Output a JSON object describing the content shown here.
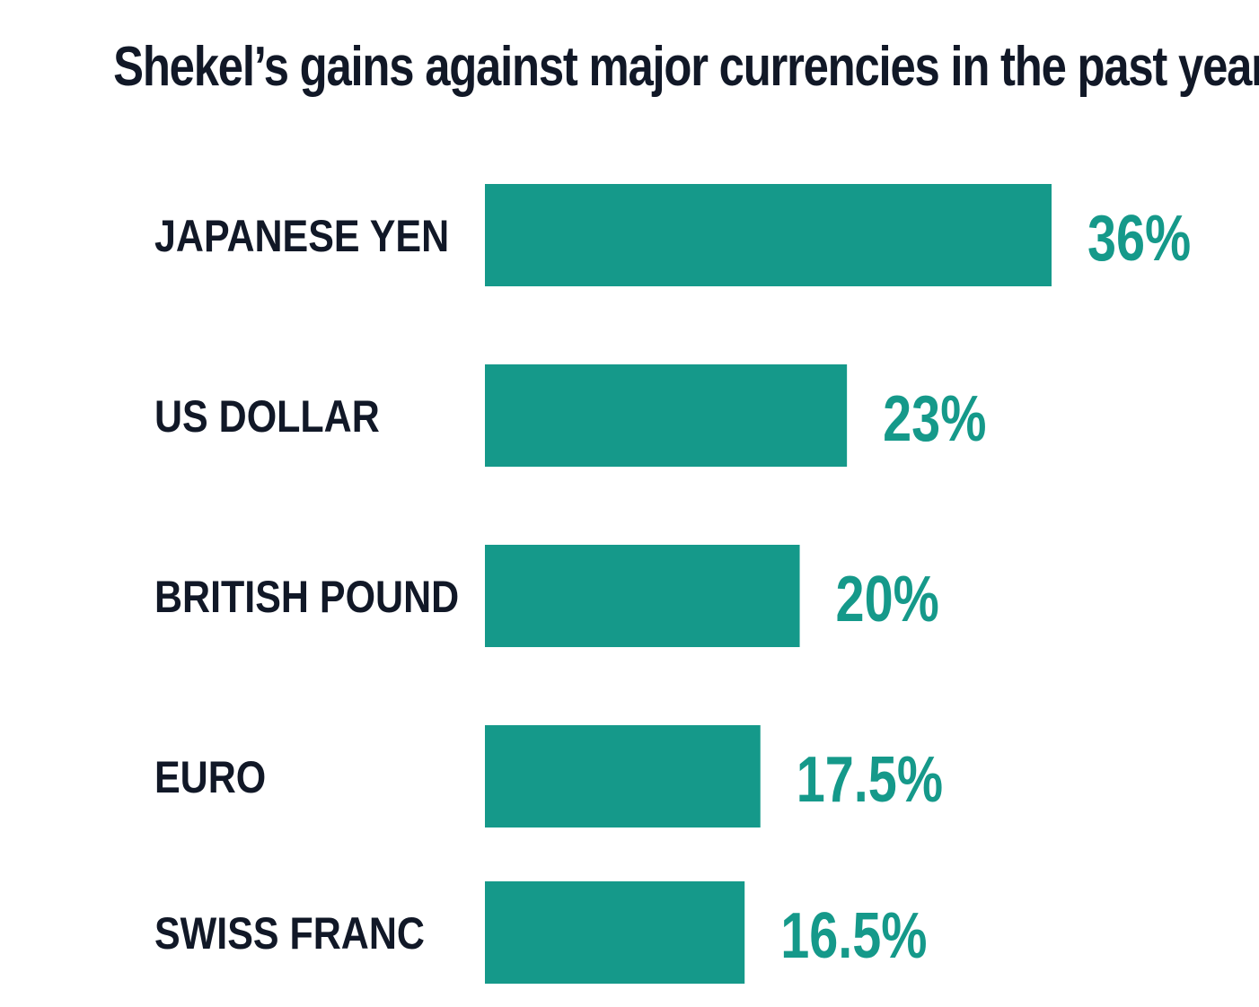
{
  "chart_data": {
    "type": "bar",
    "orientation": "horizontal",
    "title": "Shekel’s gains against major currencies in the past year",
    "categories": [
      "JAPANESE YEN",
      "US DOLLAR",
      "BRITISH POUND",
      "EURO",
      "SWISS FRANC"
    ],
    "values": [
      36,
      23,
      20,
      17.5,
      16.5
    ],
    "value_labels": [
      "36%",
      "23%",
      "20%",
      "17.5%",
      "16.5%"
    ],
    "unit": "%",
    "xlabel": "",
    "ylabel": "",
    "xlim": [
      0,
      36
    ],
    "grid": false,
    "legend": "none",
    "colors": {
      "bar": "#15998a",
      "value_text": "#15998a",
      "label_text": "#111827",
      "title_text": "#111827"
    }
  }
}
